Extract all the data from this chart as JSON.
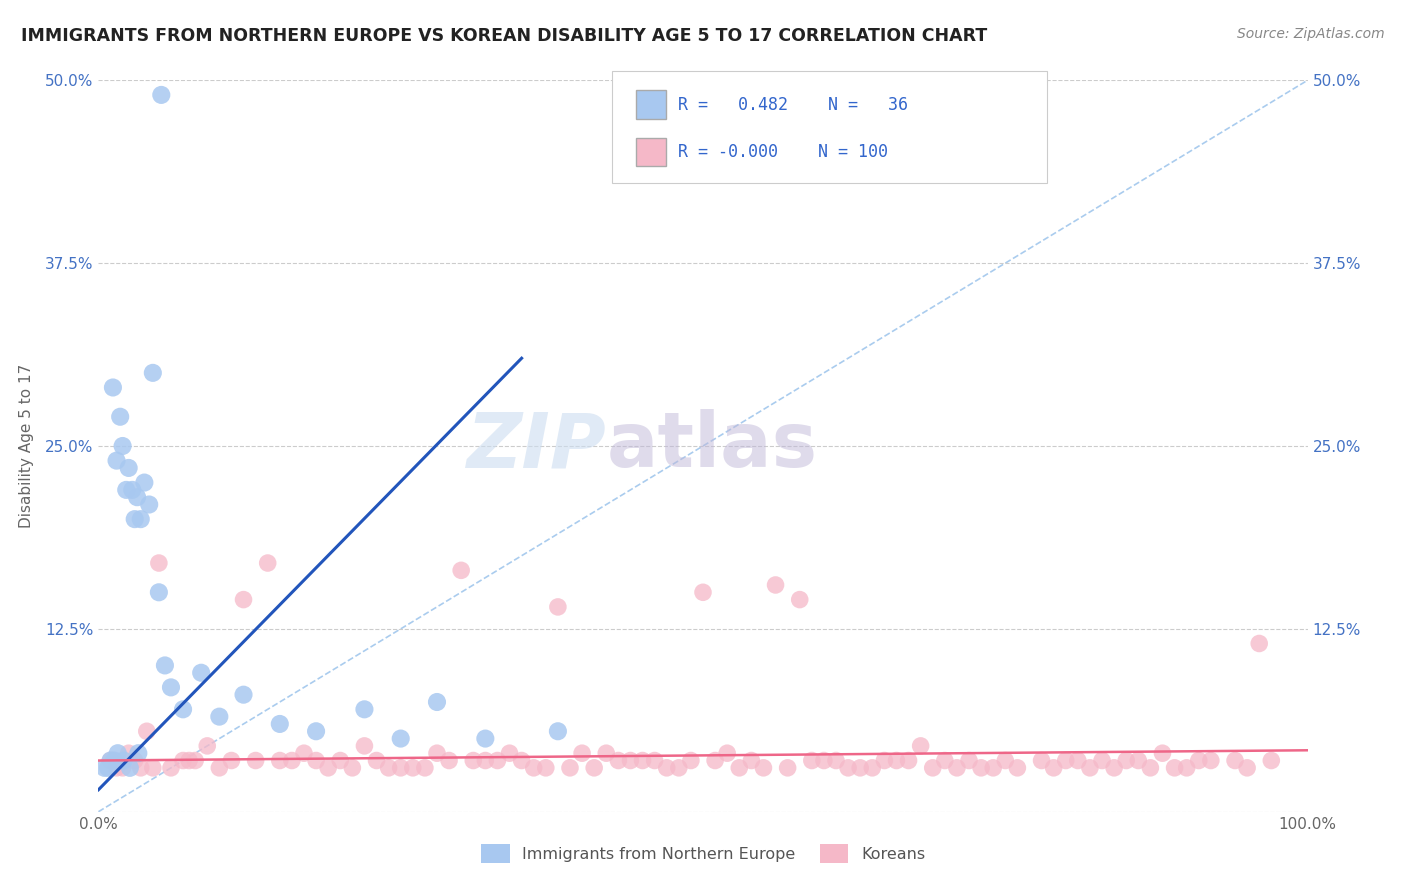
{
  "title": "IMMIGRANTS FROM NORTHERN EUROPE VS KOREAN DISABILITY AGE 5 TO 17 CORRELATION CHART",
  "source": "Source: ZipAtlas.com",
  "ylabel": "Disability Age 5 to 17",
  "xlim": [
    0,
    100
  ],
  "ylim": [
    0,
    50
  ],
  "yticks": [
    0,
    12.5,
    25.0,
    37.5,
    50.0
  ],
  "xticks": [
    0,
    25,
    50,
    75,
    100
  ],
  "blue_R": 0.482,
  "blue_N": 36,
  "pink_R": -0.0,
  "pink_N": 100,
  "blue_color": "#A8C8F0",
  "pink_color": "#F5B8C8",
  "blue_line_color": "#2255BB",
  "pink_line_color": "#EE6688",
  "legend_label_blue": "Immigrants from Northern Europe",
  "legend_label_pink": "Koreans",
  "watermark_zip": "ZIP",
  "watermark_atlas": "atlas",
  "background_color": "#FFFFFF",
  "grid_color": "#CCCCCC",
  "blue_scatter_x": [
    1.2,
    1.8,
    2.5,
    2.8,
    3.2,
    3.5,
    3.8,
    4.2,
    4.5,
    1.5,
    2.0,
    2.3,
    3.0,
    5.0,
    5.5,
    6.0,
    7.0,
    8.5,
    10.0,
    12.0,
    15.0,
    18.0,
    22.0,
    25.0,
    28.0,
    32.0,
    38.0,
    1.0,
    0.5,
    0.8,
    1.3,
    1.6,
    2.1,
    2.6,
    3.3,
    5.2
  ],
  "blue_scatter_y": [
    29.0,
    27.0,
    23.5,
    22.0,
    21.5,
    20.0,
    22.5,
    21.0,
    30.0,
    24.0,
    25.0,
    22.0,
    20.0,
    15.0,
    10.0,
    8.5,
    7.0,
    9.5,
    6.5,
    8.0,
    6.0,
    5.5,
    7.0,
    5.0,
    7.5,
    5.0,
    5.5,
    3.5,
    3.0,
    3.0,
    3.5,
    4.0,
    3.5,
    3.0,
    4.0,
    49.0
  ],
  "pink_scatter_x": [
    1.0,
    2.0,
    3.0,
    4.5,
    6.0,
    7.5,
    9.0,
    11.0,
    14.0,
    17.0,
    20.0,
    24.0,
    28.0,
    32.0,
    36.0,
    40.0,
    44.0,
    48.0,
    52.0,
    56.0,
    60.0,
    64.0,
    68.0,
    72.0,
    76.0,
    80.0,
    84.0,
    88.0,
    92.0,
    96.0,
    2.5,
    5.0,
    8.0,
    12.0,
    16.0,
    22.0,
    26.0,
    30.0,
    34.0,
    38.0,
    42.0,
    46.0,
    50.0,
    54.0,
    58.0,
    62.0,
    66.0,
    70.0,
    74.0,
    78.0,
    82.0,
    86.0,
    90.0,
    94.0,
    3.5,
    7.0,
    10.0,
    15.0,
    19.0,
    23.0,
    27.0,
    31.0,
    35.0,
    39.0,
    43.0,
    47.0,
    51.0,
    55.0,
    59.0,
    63.0,
    67.0,
    71.0,
    75.0,
    79.0,
    83.0,
    87.0,
    91.0,
    95.0,
    4.0,
    18.0,
    25.0,
    33.0,
    41.0,
    49.0,
    57.0,
    65.0,
    73.0,
    81.0,
    89.0,
    97.0,
    1.5,
    13.0,
    21.0,
    29.0,
    37.0,
    45.0,
    53.0,
    61.0,
    69.0,
    85.0
  ],
  "pink_scatter_y": [
    3.5,
    3.0,
    3.5,
    3.0,
    3.0,
    3.5,
    4.5,
    3.5,
    17.0,
    4.0,
    3.5,
    3.0,
    4.0,
    3.5,
    3.0,
    4.0,
    3.5,
    3.0,
    4.0,
    15.5,
    3.5,
    3.0,
    4.5,
    3.5,
    3.0,
    3.5,
    3.0,
    4.0,
    3.5,
    11.5,
    4.0,
    17.0,
    3.5,
    14.5,
    3.5,
    4.5,
    3.0,
    16.5,
    4.0,
    14.0,
    4.0,
    3.5,
    15.0,
    3.5,
    14.5,
    3.0,
    3.5,
    3.5,
    3.0,
    3.5,
    3.0,
    3.5,
    3.0,
    3.5,
    3.0,
    3.5,
    3.0,
    3.5,
    3.0,
    3.5,
    3.0,
    3.5,
    3.5,
    3.0,
    3.5,
    3.0,
    3.5,
    3.0,
    3.5,
    3.0,
    3.5,
    3.0,
    3.5,
    3.0,
    3.5,
    3.0,
    3.5,
    3.0,
    5.5,
    3.5,
    3.0,
    3.5,
    3.0,
    3.5,
    3.0,
    3.5,
    3.0,
    3.5,
    3.0,
    3.5,
    3.0,
    3.5,
    3.0,
    3.5,
    3.0,
    3.5,
    3.0,
    3.5,
    3.0,
    3.5
  ]
}
